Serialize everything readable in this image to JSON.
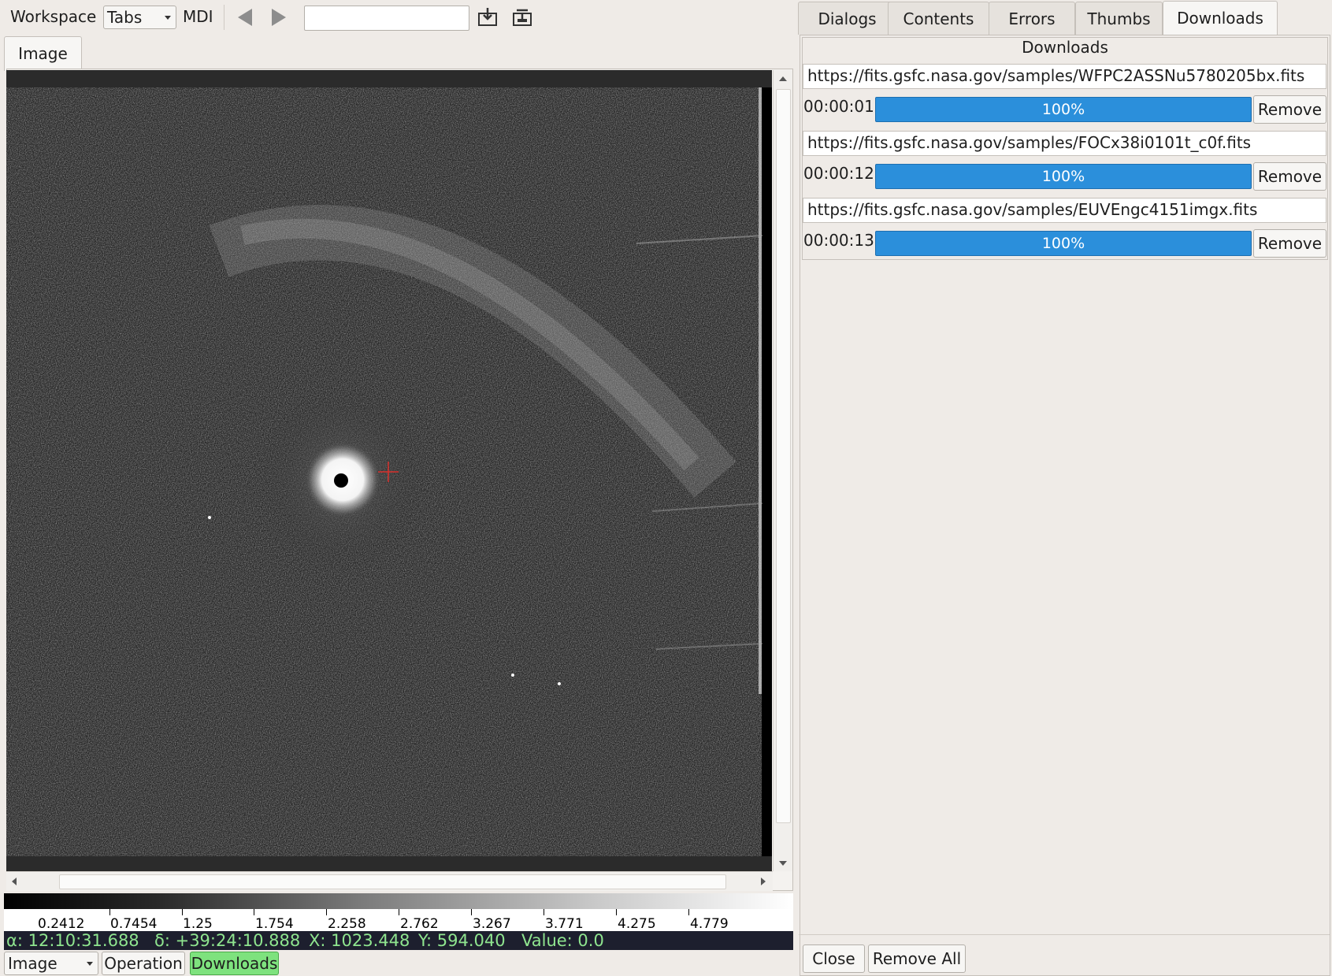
{
  "toolbar": {
    "workspace_label": "Workspace",
    "layout_value": "Tabs",
    "mdi_label": "MDI",
    "search_value": "",
    "icons": [
      "arrow-left-icon",
      "arrow-right-icon",
      "download-icon",
      "upload-icon"
    ]
  },
  "image_tab": {
    "label": "Image"
  },
  "colorbar": {
    "ticks": [
      "0.2412",
      "0.7454",
      "1.25",
      "1.754",
      "2.258",
      "2.762",
      "3.267",
      "3.771",
      "4.275",
      "4.779"
    ]
  },
  "status": {
    "alpha": "α: 12:10:31.688",
    "delta": "δ: +39:24:10.888",
    "x": "X: 1023.448",
    "y": "Y: 594.040",
    "value": "Value: 0.0"
  },
  "bottom": {
    "mode_value": "Image",
    "operation_label": "Operation",
    "downloads_label": "Downloads"
  },
  "right_tabs": [
    "Dialogs",
    "Contents",
    "Errors",
    "Thumbs",
    "Downloads"
  ],
  "downloads": {
    "title": "Downloads",
    "items": [
      {
        "url": "https://fits.gsfc.nasa.gov/samples/WFPC2ASSNu5780205bx.fits",
        "elapsed": "00:00:01",
        "progress": "100%",
        "remove": "Remove"
      },
      {
        "url": "https://fits.gsfc.nasa.gov/samples/FOCx38i0101t_c0f.fits",
        "elapsed": "00:00:12",
        "progress": "100%",
        "remove": "Remove"
      },
      {
        "url": "https://fits.gsfc.nasa.gov/samples/EUVEngc4151imgx.fits",
        "elapsed": "00:00:13",
        "progress": "100%",
        "remove": "Remove"
      }
    ],
    "close_label": "Close",
    "remove_all_label": "Remove All"
  },
  "colors": {
    "accent": "#2b8fdb",
    "status_text": "#8fe58f",
    "status_bg": "#1d1f2e",
    "highlight": "#7ee27e"
  }
}
